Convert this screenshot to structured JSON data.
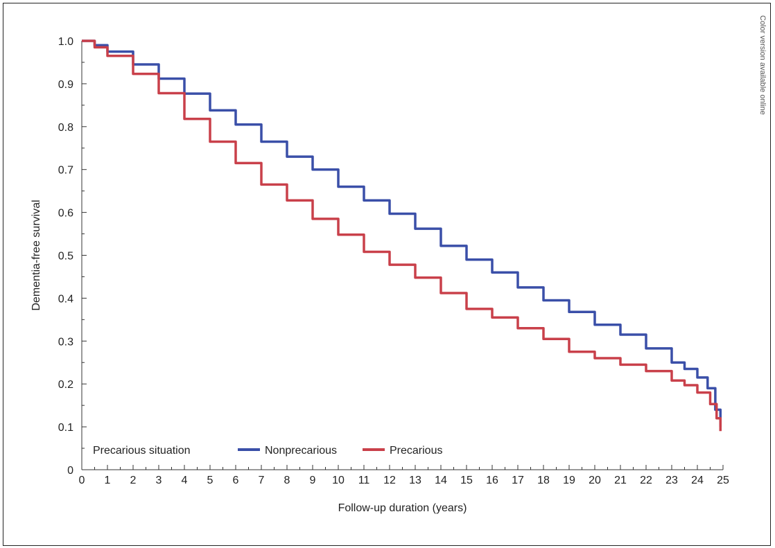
{
  "side_note": "Color version available online",
  "chart_data": {
    "type": "line",
    "xlabel": "Follow-up duration (years)",
    "ylabel": "Dementia-free survival",
    "xlim": [
      0,
      25
    ],
    "ylim": [
      0,
      1.0
    ],
    "x_ticks": [
      "0",
      "1",
      "2",
      "3",
      "4",
      "5",
      "6",
      "7",
      "8",
      "9",
      "10",
      "11",
      "12",
      "13",
      "14",
      "15",
      "16",
      "17",
      "18",
      "19",
      "20",
      "21",
      "22",
      "23",
      "24",
      "25"
    ],
    "y_ticks": [
      "0",
      "0.1",
      "0.2",
      "0.3",
      "0.4",
      "0.5",
      "0.6",
      "0.7",
      "0.8",
      "0.9",
      "1.0"
    ],
    "grid": false,
    "legend": {
      "title": "Precarious situation",
      "placement": "bottom-left",
      "entries": [
        "Nonprecarious",
        "Precarious"
      ]
    },
    "series": [
      {
        "name": "Nonprecarious",
        "color": "#3a4fa8",
        "points": [
          [
            0,
            1.0
          ],
          [
            0.5,
            0.99
          ],
          [
            1,
            0.975
          ],
          [
            2,
            0.945
          ],
          [
            3,
            0.912
          ],
          [
            4,
            0.877
          ],
          [
            5,
            0.838
          ],
          [
            6,
            0.805
          ],
          [
            7,
            0.765
          ],
          [
            8,
            0.73
          ],
          [
            9,
            0.7
          ],
          [
            10,
            0.66
          ],
          [
            11,
            0.628
          ],
          [
            12,
            0.597
          ],
          [
            13,
            0.562
          ],
          [
            14,
            0.522
          ],
          [
            15,
            0.49
          ],
          [
            16,
            0.46
          ],
          [
            17,
            0.425
          ],
          [
            18,
            0.395
          ],
          [
            19,
            0.368
          ],
          [
            20,
            0.338
          ],
          [
            21,
            0.315
          ],
          [
            22,
            0.283
          ],
          [
            23,
            0.25
          ],
          [
            23.5,
            0.235
          ],
          [
            24,
            0.215
          ],
          [
            24.4,
            0.19
          ],
          [
            24.7,
            0.14
          ],
          [
            24.9,
            0.1
          ]
        ]
      },
      {
        "name": "Precarious",
        "color": "#c9404a",
        "points": [
          [
            0,
            1.0
          ],
          [
            0.5,
            0.985
          ],
          [
            1,
            0.965
          ],
          [
            2,
            0.923
          ],
          [
            3,
            0.878
          ],
          [
            4,
            0.818
          ],
          [
            5,
            0.765
          ],
          [
            6,
            0.715
          ],
          [
            7,
            0.665
          ],
          [
            8,
            0.628
          ],
          [
            9,
            0.585
          ],
          [
            10,
            0.548
          ],
          [
            11,
            0.508
          ],
          [
            12,
            0.478
          ],
          [
            13,
            0.448
          ],
          [
            14,
            0.412
          ],
          [
            15,
            0.375
          ],
          [
            16,
            0.355
          ],
          [
            17,
            0.33
          ],
          [
            18,
            0.305
          ],
          [
            19,
            0.275
          ],
          [
            20,
            0.26
          ],
          [
            21,
            0.245
          ],
          [
            22,
            0.23
          ],
          [
            23,
            0.208
          ],
          [
            23.5,
            0.197
          ],
          [
            24,
            0.18
          ],
          [
            24.5,
            0.153
          ],
          [
            24.75,
            0.12
          ],
          [
            24.9,
            0.09
          ]
        ]
      }
    ]
  }
}
